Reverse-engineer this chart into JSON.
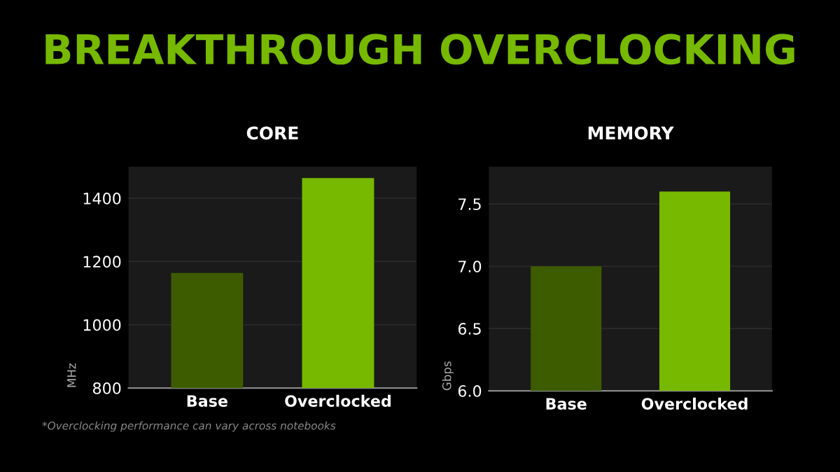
{
  "chart_data": [
    {
      "type": "bar",
      "title": "BREAKTHROUGH OVERCLOCKING",
      "subtitle": "CORE",
      "ylabel": "MHz",
      "categories": [
        "Base",
        "Overclocked"
      ],
      "values": [
        1164,
        1464
      ],
      "colors": [
        "#3d5c00",
        "#76b900"
      ],
      "ylim": [
        800,
        1500
      ],
      "yticks": [
        800,
        1000,
        1200,
        1400
      ],
      "grid": "y",
      "annotations": [
        "*Overclocking performance can vary across notebooks"
      ]
    },
    {
      "type": "bar",
      "title": "MEMORY",
      "ylabel": "Gbps",
      "categories": [
        "Base",
        "Overclocked"
      ],
      "values": [
        7.0,
        7.6
      ],
      "colors": [
        "#3d5c00",
        "#76b900"
      ],
      "ylim": [
        6.0,
        7.8
      ],
      "yticks": [
        {
          "value": 6.0,
          "label": "6.0"
        },
        {
          "value": 6.5,
          "label": "6.5"
        },
        {
          "value": 7.0,
          "label": "7.0"
        },
        {
          "value": 7.5,
          "label": "7.5"
        }
      ],
      "grid": "y"
    }
  ]
}
